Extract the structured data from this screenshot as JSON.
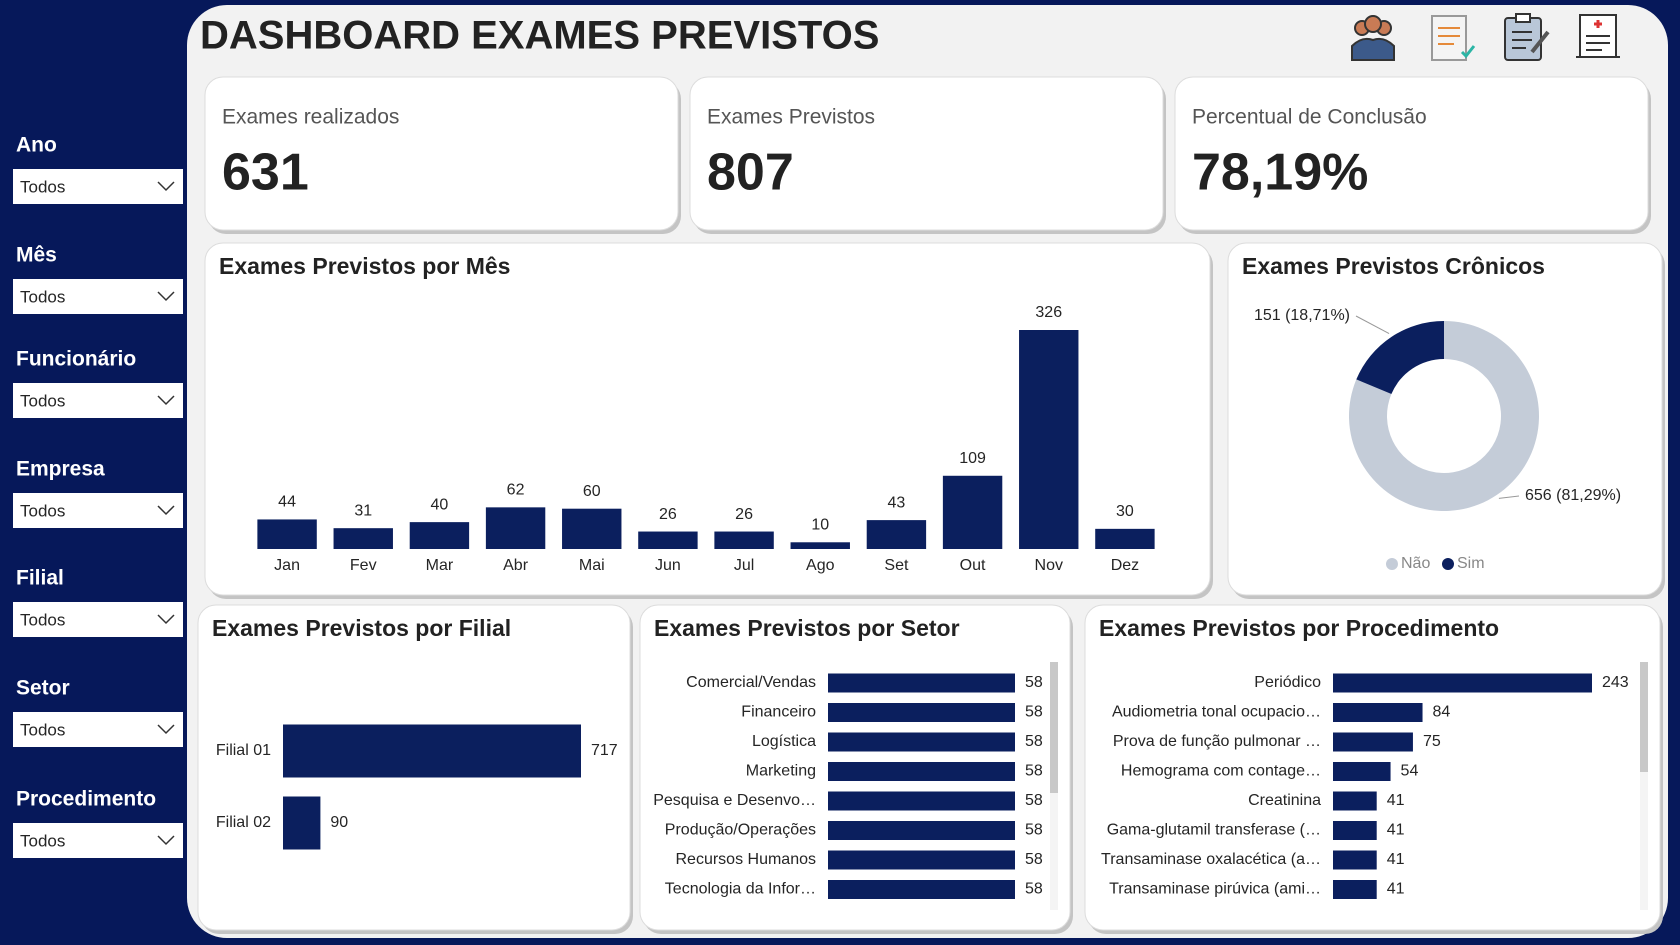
{
  "title": "DASHBOARD EXAMES PREVISTOS",
  "filters": [
    {
      "label": "Ano",
      "value": "Todos"
    },
    {
      "label": "Mês",
      "value": "Todos"
    },
    {
      "label": "Funcionário",
      "value": "Todos"
    },
    {
      "label": "Empresa",
      "value": "Todos"
    },
    {
      "label": "Filial",
      "value": "Todos"
    },
    {
      "label": "Setor",
      "value": "Todos"
    },
    {
      "label": "Procedimento",
      "value": "Todos"
    }
  ],
  "kpis": [
    {
      "label": "Exames realizados",
      "value": "631"
    },
    {
      "label": "Exames Previstos",
      "value": "807"
    },
    {
      "label": "Percentual de Conclusão",
      "value": "78,19%"
    }
  ],
  "chart_data": [
    {
      "type": "bar",
      "title": "Exames Previstos por Mês",
      "categories": [
        "Jan",
        "Fev",
        "Mar",
        "Abr",
        "Mai",
        "Jun",
        "Jul",
        "Ago",
        "Set",
        "Out",
        "Nov",
        "Dez"
      ],
      "values": [
        44,
        31,
        40,
        62,
        60,
        26,
        26,
        10,
        43,
        109,
        326,
        30
      ],
      "color": "#0b1f5e"
    },
    {
      "type": "donut",
      "title": "Exames Previstos Crônicos",
      "categories": [
        "Não",
        "Sim"
      ],
      "values": [
        656,
        151
      ],
      "value_labels": [
        "656 (81,29%)",
        "151 (18,71%)"
      ],
      "colors": [
        "#c4ccd8",
        "#0b1f5e"
      ]
    },
    {
      "type": "barh",
      "title": "Exames Previstos por Filial",
      "categories": [
        "Filial 01",
        "Filial 02"
      ],
      "values": [
        717,
        90
      ],
      "color": "#0b1f5e"
    },
    {
      "type": "barh",
      "title": "Exames Previstos por Setor",
      "categories": [
        "Comercial/Vendas",
        "Financeiro",
        "Logística",
        "Marketing",
        "Pesquisa e Desenvo…",
        "Produção/Operações",
        "Recursos Humanos",
        "Tecnologia da Infor…"
      ],
      "values": [
        58,
        58,
        58,
        58,
        58,
        58,
        58,
        58
      ],
      "color": "#0b1f5e"
    },
    {
      "type": "barh",
      "title": "Exames Previstos por Procedimento",
      "categories": [
        "Periódico",
        "Audiometria tonal ocupacio…",
        "Prova de função pulmonar …",
        "Hemograma com contage…",
        "Creatinina",
        "Gama-glutamil transferase (…",
        "Transaminase oxalacética (a…",
        "Transaminase pirúvica (ami…"
      ],
      "values": [
        243,
        84,
        75,
        54,
        41,
        41,
        41,
        41
      ],
      "color": "#0b1f5e"
    }
  ]
}
